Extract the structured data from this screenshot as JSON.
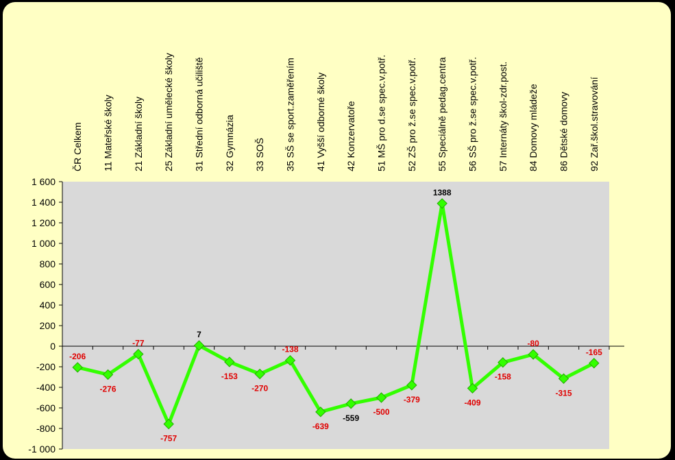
{
  "chart_data": {
    "type": "line",
    "categories": [
      "ČR Celkem",
      "11 Mateřské školy",
      "21 Základní školy",
      "25 Základní umělecké školy",
      "31 Střední odborná učiliště",
      "32 Gymnázia",
      "33 SOŠ",
      "35 SŠ se sport.zaměřením",
      "41 Vyšší odborné školy",
      "42 Konzervatoře",
      "51 MŠ pro d.se spec.v.potř.",
      "52 ZŠ pro ž.se spec.v.potř.",
      "55 Speciálně pedag.centra",
      "56 SŠ pro ž.se spec.v.potř.",
      "57 Internáty škol-zdr.post.",
      "84 Domovy mládeže",
      "86 Dětské domovy",
      "92 Zař.škol.stravování"
    ],
    "values": [
      -206,
      -276,
      -77,
      -757,
      7,
      -153,
      -270,
      -138,
      -639,
      -559,
      -500,
      -379,
      1388,
      -409,
      -158,
      -80,
      -315,
      -165
    ],
    "ylim": [
      -1000,
      1600
    ],
    "y_ticks": [
      "-1 000",
      "-800",
      "-600",
      "-400",
      "-200",
      "0",
      "200",
      "400",
      "600",
      "800",
      "1 000",
      "1 200",
      "1 400",
      "1 600"
    ],
    "grid": false,
    "colors": {
      "line": "#33ff00",
      "marker": "#33ff00",
      "label_negative": "#e00000",
      "label_positive": "#000000",
      "plot_background": "#d9d9d9",
      "card_background": "#ffffc4"
    }
  }
}
